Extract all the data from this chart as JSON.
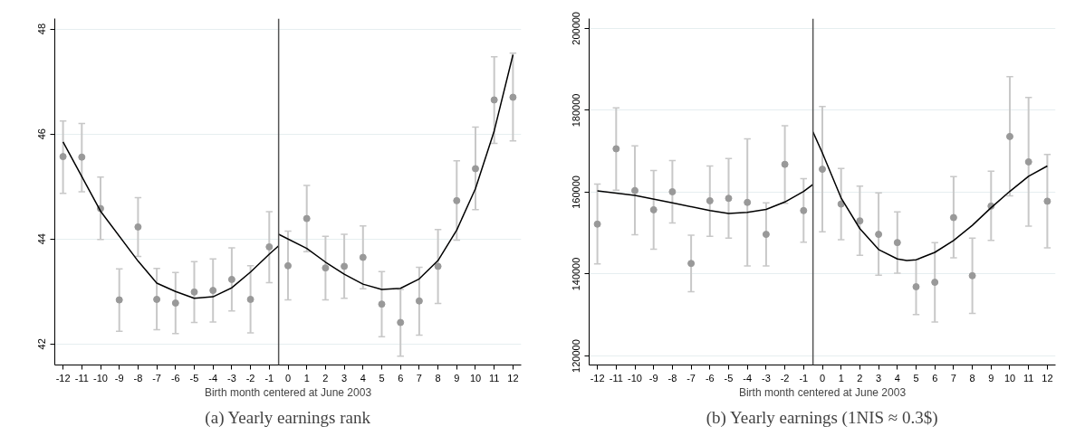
{
  "chart_data": [
    {
      "type": "scatter",
      "title": "(a) Yearly earnings rank",
      "xlabel": "Birth month centered at June 2003",
      "xlim": [
        -12.44,
        12.44
      ],
      "xticks": [
        -12,
        -11,
        -10,
        -9,
        -8,
        -7,
        -6,
        -5,
        -4,
        -3,
        -2,
        -1,
        0,
        1,
        2,
        3,
        4,
        5,
        6,
        7,
        8,
        9,
        10,
        11,
        12
      ],
      "ylim": [
        41.6,
        48.2
      ],
      "yticks": [
        42,
        44,
        46,
        48
      ],
      "grid": "y",
      "ref_lines": [
        {
          "axis": "x",
          "value": -0.5,
          "color": "#555555"
        }
      ],
      "series": [
        {
          "type": "scatter",
          "marker": "circle",
          "color": "#999999",
          "x": [
            -12,
            -11,
            -10,
            -9,
            -8,
            -7,
            -6,
            -5,
            -4,
            -3,
            -2,
            -1,
            0,
            1,
            2,
            3,
            4,
            5,
            6,
            7,
            8,
            9,
            10,
            11,
            12
          ],
          "values": [
            45.57,
            45.56,
            44.58,
            42.84,
            44.23,
            42.85,
            42.78,
            42.99,
            43.02,
            43.23,
            42.85,
            43.85,
            43.49,
            44.39,
            43.45,
            43.48,
            43.65,
            42.76,
            42.41,
            42.82,
            43.48,
            44.73,
            45.34,
            46.65,
            46.7
          ],
          "errors": [
            [
              44.87,
              46.25
            ],
            [
              44.9,
              46.2
            ],
            [
              43.99,
              45.18
            ],
            [
              42.24,
              43.43
            ],
            [
              43.67,
              44.79
            ],
            [
              42.27,
              43.44
            ],
            [
              42.2,
              43.36
            ],
            [
              42.41,
              43.57
            ],
            [
              42.42,
              43.62
            ],
            [
              42.63,
              43.83
            ],
            [
              42.21,
              43.49
            ],
            [
              43.17,
              44.52
            ],
            [
              42.84,
              44.15
            ],
            [
              43.76,
              45.02
            ],
            [
              42.84,
              44.05
            ],
            [
              42.87,
              44.09
            ],
            [
              43.05,
              44.25
            ],
            [
              42.14,
              43.38
            ],
            [
              41.77,
              43.04
            ],
            [
              42.17,
              43.46
            ],
            [
              42.77,
              44.18
            ],
            [
              43.98,
              45.49
            ],
            [
              44.56,
              46.13
            ],
            [
              45.82,
              47.47
            ],
            [
              45.87,
              47.54
            ]
          ]
        },
        {
          "type": "line",
          "color": "#000000",
          "x": [
            -12,
            -10,
            -8,
            -7,
            -6,
            -5,
            -4,
            -3,
            -2,
            -1,
            -0.5
          ],
          "values": [
            45.85,
            44.53,
            43.58,
            43.16,
            43.0,
            42.87,
            42.9,
            43.07,
            43.37,
            43.71,
            43.87
          ]
        },
        {
          "type": "line",
          "color": "#000000",
          "x": [
            -0.5,
            1,
            2,
            3,
            4,
            5,
            6,
            7,
            8,
            9,
            10,
            11,
            12
          ],
          "values": [
            44.09,
            43.82,
            43.56,
            43.33,
            43.14,
            43.04,
            43.06,
            43.24,
            43.59,
            44.17,
            44.96,
            46.06,
            47.51
          ]
        }
      ]
    },
    {
      "type": "scatter",
      "title": "(b) Yearly earnings (1NIS ≈ 0.3$)",
      "xlabel": "Birth month centered at June 2003",
      "xlim": [
        -12.44,
        12.44
      ],
      "xticks": [
        -12,
        -11,
        -10,
        -9,
        -8,
        -7,
        -6,
        -5,
        -4,
        -3,
        -2,
        -1,
        0,
        1,
        2,
        3,
        4,
        5,
        6,
        7,
        8,
        9,
        10,
        11,
        12
      ],
      "ylim": [
        117800,
        202400
      ],
      "yticks": [
        120000,
        140000,
        160000,
        180000,
        200000
      ],
      "grid": "y",
      "ref_lines": [
        {
          "axis": "x",
          "value": -0.5,
          "color": "#555555"
        }
      ],
      "series": [
        {
          "type": "scatter",
          "marker": "circle",
          "color": "#999999",
          "x": [
            -12,
            -11,
            -10,
            -9,
            -8,
            -7,
            -6,
            -5,
            -4,
            -3,
            -2,
            -1,
            0,
            1,
            2,
            3,
            4,
            5,
            6,
            7,
            8,
            9,
            10,
            11,
            12
          ],
          "values": [
            152200,
            170600,
            160400,
            155700,
            160100,
            142600,
            157900,
            158500,
            157500,
            149700,
            166800,
            155500,
            165600,
            157100,
            153000,
            149700,
            147700,
            136900,
            138000,
            153800,
            139600,
            156600,
            173600,
            167400,
            157800
          ],
          "errors": [
            [
              142500,
              162000
            ],
            [
              160500,
              180600
            ],
            [
              149600,
              171300
            ],
            [
              146100,
              165300
            ],
            [
              152500,
              167700
            ],
            [
              135700,
              149500
            ],
            [
              149200,
              166400
            ],
            [
              148800,
              168200
            ],
            [
              142000,
              173000
            ],
            [
              142000,
              157400
            ],
            [
              157300,
              176200
            ],
            [
              147800,
              163300
            ],
            [
              150300,
              180900
            ],
            [
              148400,
              165800
            ],
            [
              144600,
              161500
            ],
            [
              139700,
              159800
            ],
            [
              140200,
              155200
            ],
            [
              130100,
              143500
            ],
            [
              128300,
              147700
            ],
            [
              144000,
              163800
            ],
            [
              130400,
              148800
            ],
            [
              148200,
              165100
            ],
            [
              159100,
              188200
            ],
            [
              151700,
              183100
            ],
            [
              146400,
              169200
            ]
          ]
        },
        {
          "type": "line",
          "color": "#000000",
          "x": [
            -12,
            -10,
            -8,
            -6,
            -5,
            -4,
            -3,
            -2,
            -1,
            -0.5
          ],
          "values": [
            160300,
            159200,
            157400,
            155500,
            154800,
            155100,
            155800,
            157600,
            160200,
            161900
          ]
        },
        {
          "type": "line",
          "color": "#000000",
          "x": [
            -0.5,
            0,
            1,
            2,
            3,
            4,
            4.5,
            5,
            6,
            7,
            8,
            9,
            10,
            11,
            12
          ],
          "values": [
            174700,
            169600,
            158600,
            151100,
            146000,
            143700,
            143300,
            143500,
            145300,
            148200,
            151900,
            156200,
            160200,
            163900,
            166400
          ]
        }
      ]
    }
  ]
}
